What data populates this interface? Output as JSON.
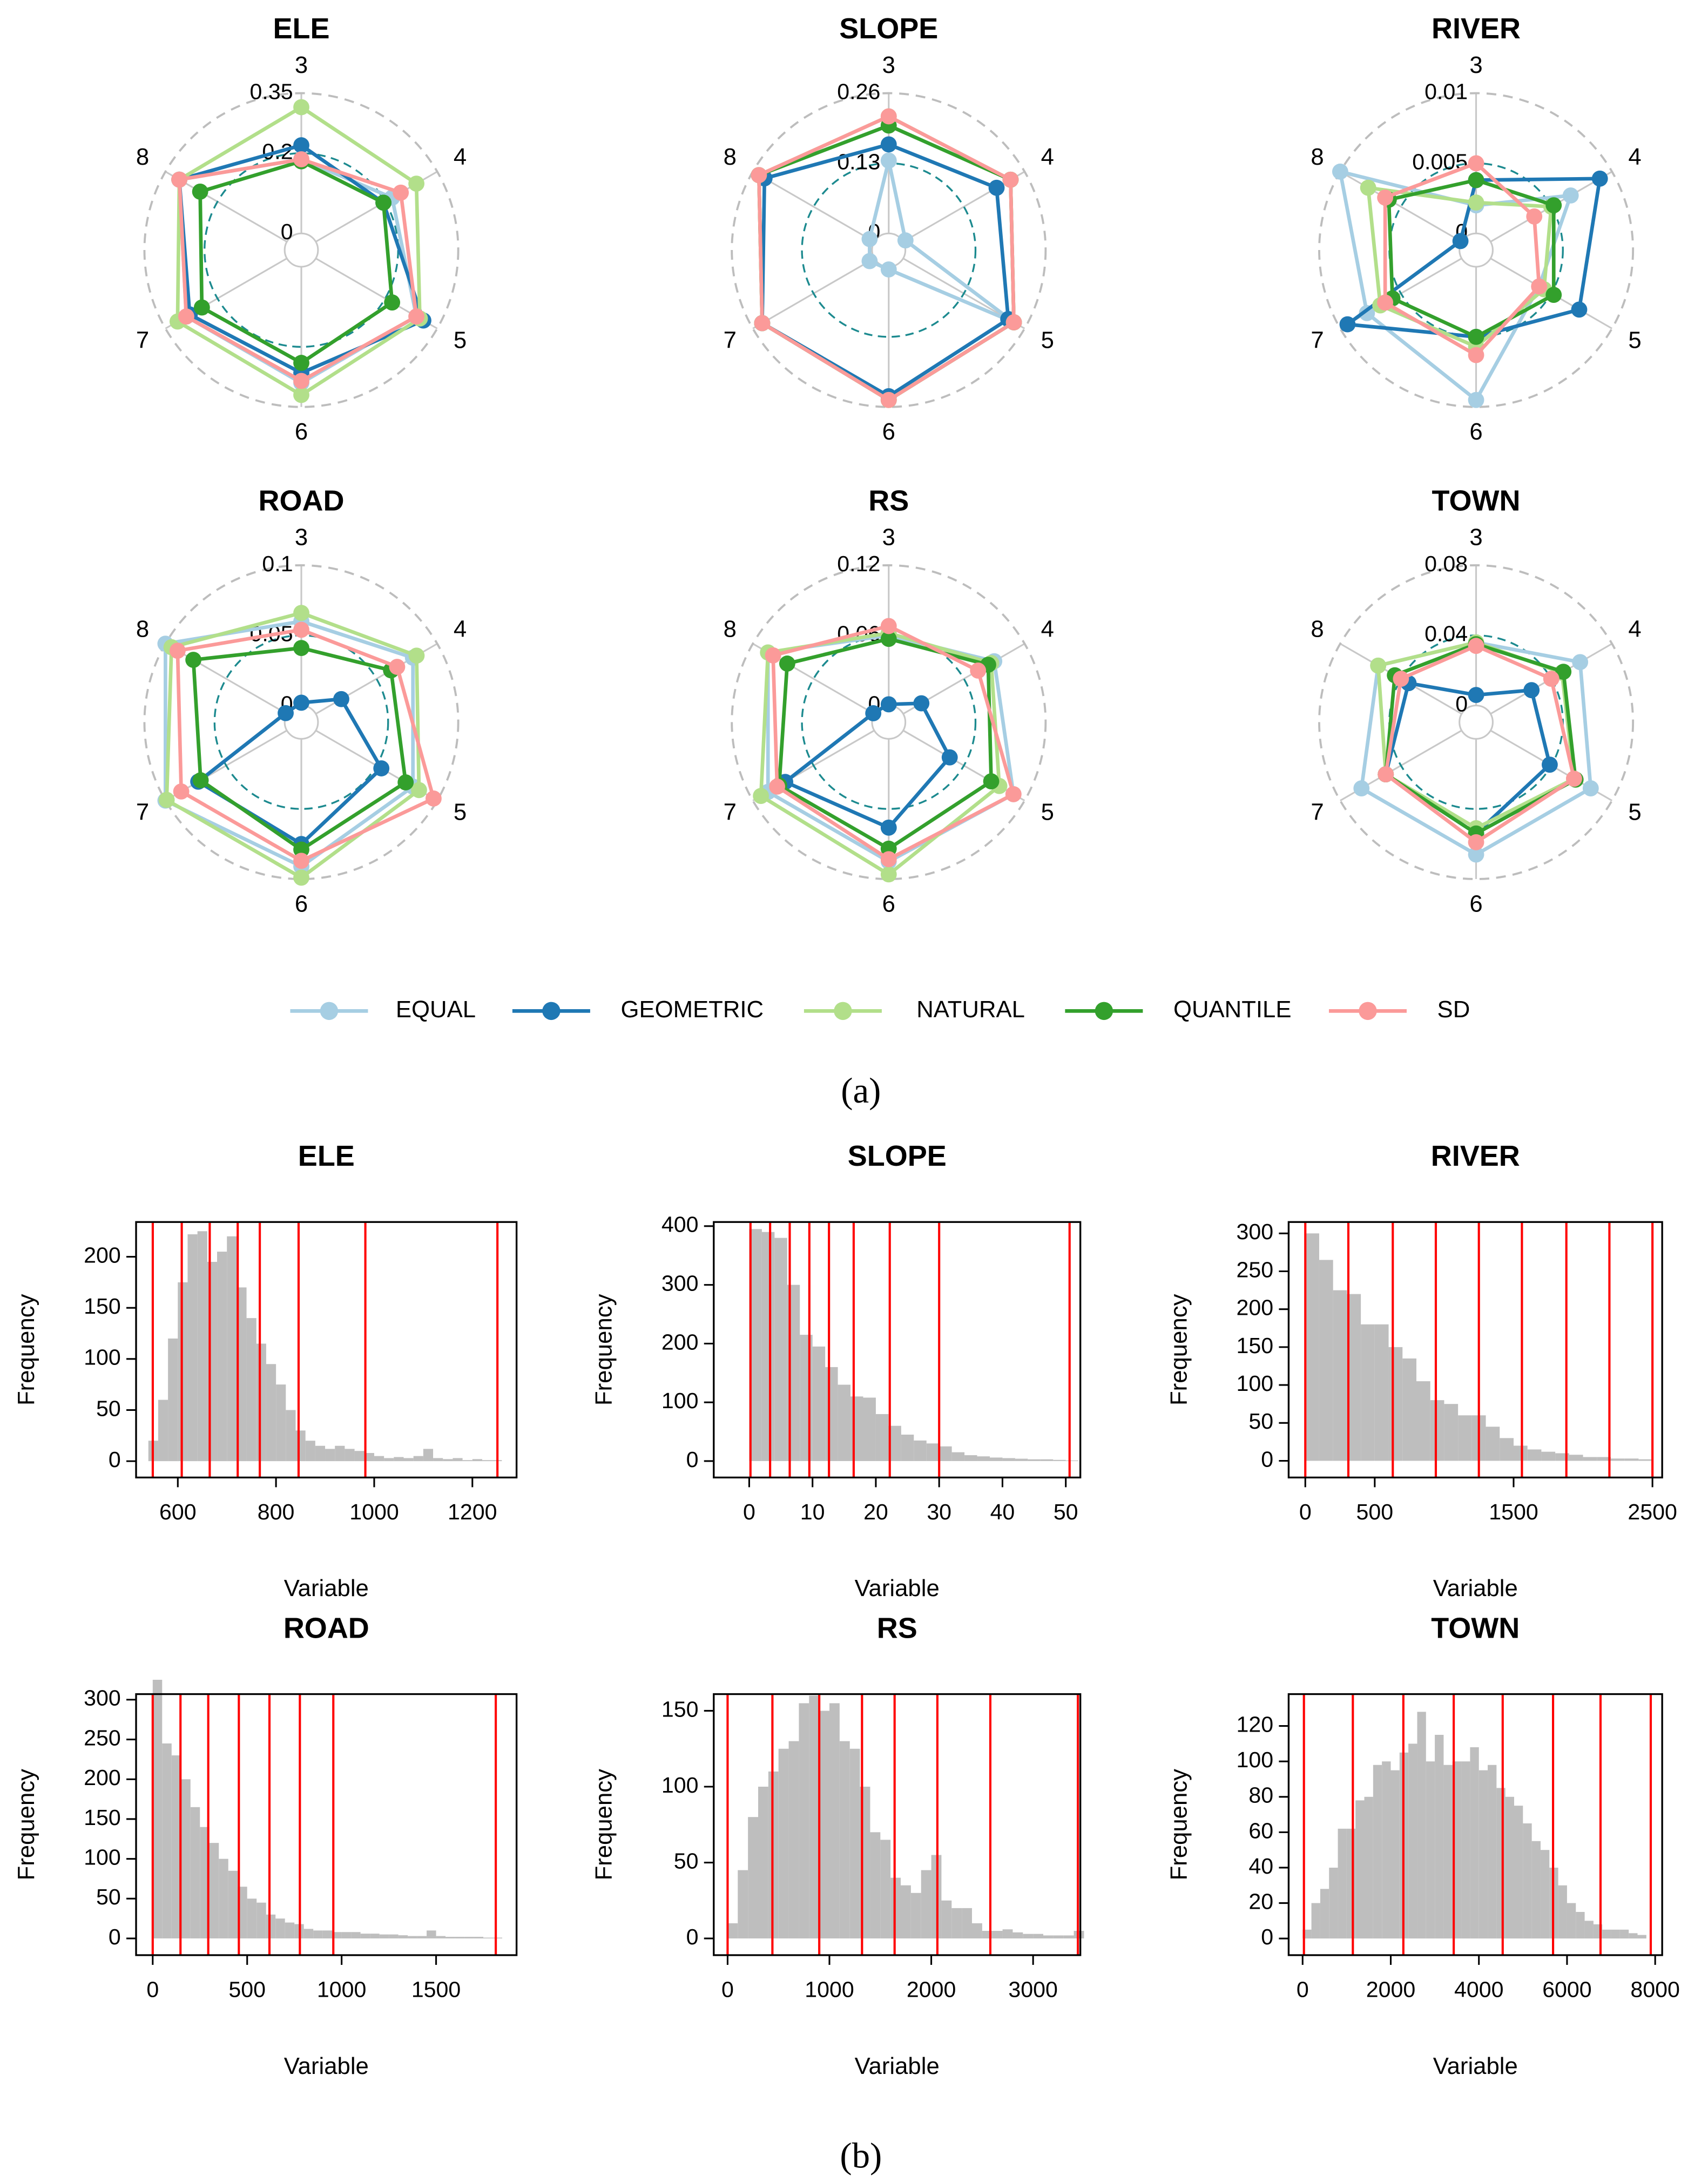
{
  "legend": [
    {
      "name": "EQUAL",
      "color": "#a6cee3"
    },
    {
      "name": "GEOMETRIC",
      "color": "#1f78b4"
    },
    {
      "name": "NATURAL",
      "color": "#b2df8a"
    },
    {
      "name": "QUANTILE",
      "color": "#33a02c"
    },
    {
      "name": "SD",
      "color": "#fb9a99"
    }
  ],
  "panel_labels": [
    "(a)",
    "(b)"
  ],
  "chart_data": [
    {
      "type": "radar",
      "title": "ELE",
      "axes": [
        "3",
        "4",
        "5",
        "6",
        "7",
        "8"
      ],
      "rlim": [
        0,
        0.35
      ],
      "rticks": [
        0,
        0.2,
        0.35
      ],
      "series": [
        {
          "values": [
            0.185,
            0.22,
            0.29,
            0.29,
            0.29,
            0.31
          ]
        },
        {
          "values": [
            0.22,
            0.195,
            0.31,
            0.265,
            0.28,
            0.31
          ]
        },
        {
          "values": [
            0.315,
            0.29,
            0.3,
            0.32,
            0.315,
            0.31
          ]
        },
        {
          "values": [
            0.18,
            0.195,
            0.22,
            0.24,
            0.245,
            0.25
          ]
        },
        {
          "values": [
            0.185,
            0.245,
            0.29,
            0.285,
            0.29,
            0.31
          ]
        }
      ]
    },
    {
      "type": "radar",
      "title": "SLOPE",
      "axes": [
        "3",
        "4",
        "5",
        "6",
        "7",
        "8"
      ],
      "rlim": [
        0,
        0.26
      ],
      "rticks": [
        0,
        0.13,
        0.26
      ],
      "series": [
        {
          "values": [
            0.135,
            0.005,
            0.237,
            0.005,
            0.01,
            0.01
          ]
        },
        {
          "values": [
            0.165,
            0.2,
            0.225,
            0.24,
            0.24,
            0.235
          ]
        },
        {
          "values": [
            0.217,
            0.23,
            0.237,
            0.247,
            0.24,
            0.247
          ]
        },
        {
          "values": [
            0.2,
            0.23,
            0.237,
            0.247,
            0.24,
            0.247
          ]
        },
        {
          "values": [
            0.217,
            0.23,
            0.237,
            0.247,
            0.24,
            0.247
          ]
        }
      ]
    },
    {
      "type": "radar",
      "title": "RIVER",
      "axes": [
        "3",
        "4",
        "5",
        "6",
        "7",
        "8"
      ],
      "rlim": [
        0,
        0.01
      ],
      "rticks": [
        0,
        0.005,
        0.01
      ],
      "series": [
        {
          "values": [
            0.002,
            0.0066,
            0.004,
            0.0095,
            0.0078,
            0.01
          ]
        },
        {
          "values": [
            0.0038,
            0.009,
            0.0073,
            0.005,
            0.0094,
            0.0001
          ]
        },
        {
          "values": [
            0.0022,
            0.005,
            0.0044,
            0.0057,
            0.0067,
            0.0077
          ]
        },
        {
          "values": [
            0.0038,
            0.0052,
            0.0052,
            0.005,
            0.0057,
            0.006
          ]
        },
        {
          "values": [
            0.005,
            0.0036,
            0.004,
            0.0063,
            0.0063,
            0.0063
          ]
        }
      ]
    },
    {
      "type": "radar",
      "title": "ROAD",
      "axes": [
        "3",
        "4",
        "5",
        "6",
        "7",
        "8"
      ],
      "rlim": [
        0,
        0.1
      ],
      "rticks": [
        0,
        0.05,
        0.1
      ],
      "series": [
        {
          "values": [
            0.06,
            0.08,
            0.08,
            0.091,
            0.1,
            0.1
          ]
        },
        {
          "values": [
            0.002,
            0.021,
            0.054,
            0.075,
            0.073,
            0.001
          ]
        },
        {
          "values": [
            0.066,
            0.083,
            0.085,
            0.099,
            0.099,
            0.095
          ]
        },
        {
          "values": [
            0.041,
            0.062,
            0.074,
            0.079,
            0.071,
            0.077
          ]
        },
        {
          "values": [
            0.054,
            0.067,
            0.097,
            0.087,
            0.087,
            0.09
          ]
        }
      ]
    },
    {
      "type": "radar",
      "title": "RS",
      "axes": [
        "3",
        "4",
        "5",
        "6",
        "7",
        "8"
      ],
      "rlim": [
        0,
        0.12
      ],
      "rticks": [
        0,
        0.06,
        0.12
      ],
      "series": [
        {
          "values": [
            0.06,
            0.09,
            0.109,
            0.105,
            0.105,
            0.105
          ]
        },
        {
          "values": [
            0.001,
            0.018,
            0.046,
            0.076,
            0.088,
            0.001
          ]
        },
        {
          "values": [
            0.062,
            0.087,
            0.095,
            0.116,
            0.112,
            0.105
          ]
        },
        {
          "values": [
            0.057,
            0.084,
            0.087,
            0.094,
            0.094,
            0.086
          ]
        },
        {
          "values": [
            0.068,
            0.074,
            0.109,
            0.103,
            0.096,
            0.1
          ]
        }
      ]
    },
    {
      "type": "radar",
      "title": "TOWN",
      "axes": [
        "3",
        "4",
        "5",
        "6",
        "7",
        "8"
      ],
      "rlim": [
        0,
        0.08
      ],
      "rticks": [
        0,
        0.04,
        0.08
      ],
      "series": [
        {
          "values": [
            0.036,
            0.059,
            0.066,
            0.066,
            0.066,
            0.055
          ]
        },
        {
          "values": [
            0.006,
            0.027,
            0.039,
            0.054,
            0.05,
            0.035
          ]
        },
        {
          "values": [
            0.036,
            0.047,
            0.055,
            0.051,
            0.05,
            0.055
          ]
        },
        {
          "values": [
            0.035,
            0.048,
            0.056,
            0.054,
            0.05,
            0.044
          ]
        },
        {
          "values": [
            0.034,
            0.04,
            0.055,
            0.059,
            0.05,
            0.04
          ]
        }
      ]
    },
    {
      "type": "histogram",
      "title": "ELE",
      "xlabel": "Variable",
      "ylabel": "Frequency",
      "color": "#bebebe",
      "break_color": "#ff0000",
      "bins": [
        540,
        560,
        580,
        600,
        620,
        640,
        660,
        680,
        700,
        720,
        740,
        760,
        780,
        800,
        820,
        840,
        860,
        880,
        900,
        920,
        940,
        960,
        980,
        1000,
        1020,
        1040,
        1060,
        1080,
        1100,
        1120,
        1140,
        1160,
        1180,
        1200,
        1220,
        1240,
        1260
      ],
      "counts": [
        20,
        60,
        120,
        175,
        222,
        225,
        195,
        205,
        220,
        170,
        140,
        115,
        95,
        75,
        50,
        30,
        20,
        15,
        12,
        15,
        12,
        10,
        8,
        5,
        3,
        4,
        3,
        5,
        12,
        3,
        2,
        3,
        1,
        2,
        1,
        1
      ],
      "breaks": [
        549,
        608,
        665,
        722,
        767,
        846,
        982,
        1251
      ],
      "xlim": [
        515,
        1290
      ],
      "xticks": [
        600,
        800,
        1000,
        1200
      ],
      "ylim": [
        -16,
        234
      ],
      "yticks": [
        0,
        50,
        100,
        150,
        200
      ]
    },
    {
      "type": "histogram",
      "title": "SLOPE",
      "xlabel": "Variable",
      "ylabel": "Frequency",
      "color": "#bebebe",
      "break_color": "#ff0000",
      "bins": [
        0,
        2,
        4,
        6,
        8,
        10,
        12,
        14,
        16,
        18,
        20,
        22,
        24,
        26,
        28,
        30,
        32,
        34,
        36,
        38,
        40,
        42,
        44,
        46,
        48,
        50,
        52
      ],
      "counts": [
        395,
        390,
        380,
        300,
        215,
        195,
        160,
        130,
        110,
        108,
        80,
        60,
        45,
        35,
        30,
        25,
        15,
        10,
        8,
        6,
        5,
        4,
        3,
        3,
        2,
        1
      ],
      "breaks": [
        0.2,
        3.3,
        6.4,
        9.5,
        12.6,
        16.5,
        22.2,
        30,
        50.6
      ],
      "xlim": [
        -5.6,
        52.3
      ],
      "xticks": [
        0,
        10,
        20,
        30,
        40,
        50
      ],
      "ylim": [
        -28,
        407
      ],
      "yticks": [
        0,
        100,
        200,
        300,
        400
      ]
    },
    {
      "type": "histogram",
      "title": "RIVER",
      "xlabel": "Variable",
      "ylabel": "Frequency",
      "color": "#bebebe",
      "break_color": "#ff0000",
      "bins": [
        0,
        100,
        200,
        300,
        400,
        500,
        600,
        700,
        800,
        900,
        1000,
        1100,
        1200,
        1300,
        1400,
        1500,
        1600,
        1700,
        1800,
        1900,
        2000,
        2100,
        2200,
        2300,
        2400,
        2500
      ],
      "counts": [
        300,
        265,
        225,
        220,
        180,
        180,
        150,
        135,
        105,
        80,
        75,
        60,
        60,
        45,
        30,
        20,
        15,
        12,
        10,
        8,
        5,
        5,
        3,
        3,
        2
      ],
      "breaks": [
        0,
        310,
        630,
        940,
        1250,
        1560,
        1880,
        2190,
        2500
      ],
      "xlim": [
        -120,
        2570
      ],
      "xticks": [
        0,
        500,
        1500,
        2500
      ],
      "ylim": [
        -22,
        315
      ],
      "yticks": [
        0,
        50,
        100,
        150,
        200,
        250,
        300
      ]
    },
    {
      "type": "histogram",
      "title": "ROAD",
      "xlabel": "Variable",
      "ylabel": "Frequency",
      "color": "#bebebe",
      "break_color": "#ff0000",
      "bins": [
        0,
        50,
        100,
        150,
        200,
        250,
        300,
        350,
        400,
        450,
        500,
        550,
        600,
        650,
        700,
        750,
        800,
        850,
        900,
        950,
        1000,
        1050,
        1100,
        1150,
        1200,
        1250,
        1300,
        1350,
        1400,
        1450,
        1500,
        1550,
        1600,
        1650,
        1700,
        1750,
        1800,
        1850
      ],
      "counts": [
        325,
        245,
        230,
        200,
        165,
        140,
        120,
        100,
        85,
        65,
        50,
        45,
        30,
        25,
        20,
        18,
        12,
        10,
        10,
        8,
        8,
        8,
        6,
        6,
        5,
        5,
        4,
        3,
        3,
        10,
        3,
        2,
        2,
        2,
        2,
        1,
        1
      ],
      "breaks": [
        0,
        147,
        294,
        456,
        618,
        779,
        956,
        1816
      ],
      "xlim": [
        -88,
        1926
      ],
      "xticks": [
        0,
        500,
        1000,
        1500
      ],
      "ylim": [
        -21,
        307
      ],
      "yticks": [
        0,
        50,
        100,
        150,
        200,
        250,
        300
      ]
    },
    {
      "type": "histogram",
      "title": "RS",
      "xlabel": "Variable",
      "ylabel": "Frequency",
      "color": "#bebebe",
      "break_color": "#ff0000",
      "bins": [
        0,
        100,
        200,
        300,
        400,
        500,
        600,
        700,
        800,
        900,
        1000,
        1100,
        1200,
        1300,
        1400,
        1500,
        1600,
        1700,
        1800,
        1900,
        2000,
        2100,
        2200,
        2300,
        2400,
        2500,
        2600,
        2700,
        2800,
        2900,
        3000,
        3100,
        3200,
        3300,
        3400,
        3500
      ],
      "counts": [
        10,
        45,
        80,
        100,
        110,
        125,
        130,
        155,
        160,
        150,
        155,
        130,
        125,
        100,
        70,
        65,
        40,
        35,
        30,
        45,
        55,
        25,
        20,
        20,
        10,
        5,
        5,
        6,
        4,
        3,
        3,
        2,
        2,
        2,
        5
      ],
      "breaks": [
        0,
        440,
        900,
        1320,
        1640,
        2060,
        2580,
        3440
      ],
      "xlim": [
        -136,
        3464
      ],
      "xticks": [
        0,
        1000,
        2000,
        3000
      ],
      "ylim": [
        -11,
        161
      ],
      "yticks": [
        0,
        50,
        100,
        150
      ]
    },
    {
      "type": "histogram",
      "title": "TOWN",
      "xlabel": "Variable",
      "ylabel": "Frequency",
      "color": "#bebebe",
      "break_color": "#ff0000",
      "bins": [
        0,
        200,
        400,
        600,
        800,
        1000,
        1200,
        1400,
        1600,
        1800,
        2000,
        2200,
        2400,
        2600,
        2800,
        3000,
        3200,
        3400,
        3600,
        3800,
        4000,
        4200,
        4400,
        4600,
        4800,
        5000,
        5200,
        5400,
        5600,
        5800,
        6000,
        6200,
        6400,
        6600,
        6800,
        7000,
        7200,
        7400,
        7600,
        7800
      ],
      "counts": [
        5,
        20,
        28,
        40,
        62,
        62,
        78,
        80,
        98,
        100,
        95,
        105,
        110,
        128,
        100,
        115,
        98,
        100,
        100,
        108,
        95,
        98,
        85,
        80,
        75,
        65,
        55,
        50,
        40,
        30,
        20,
        15,
        10,
        8,
        5,
        5,
        5,
        3,
        2
      ],
      "breaks": [
        30,
        1140,
        2286,
        3429,
        4540,
        5683,
        6760,
        7900
      ],
      "xlim": [
        -317,
        8159
      ],
      "xticks": [
        0,
        2000,
        4000,
        6000,
        8000
      ],
      "ylim": [
        -9.4,
        138
      ],
      "yticks": [
        0,
        20,
        40,
        60,
        80,
        100,
        120
      ]
    }
  ]
}
